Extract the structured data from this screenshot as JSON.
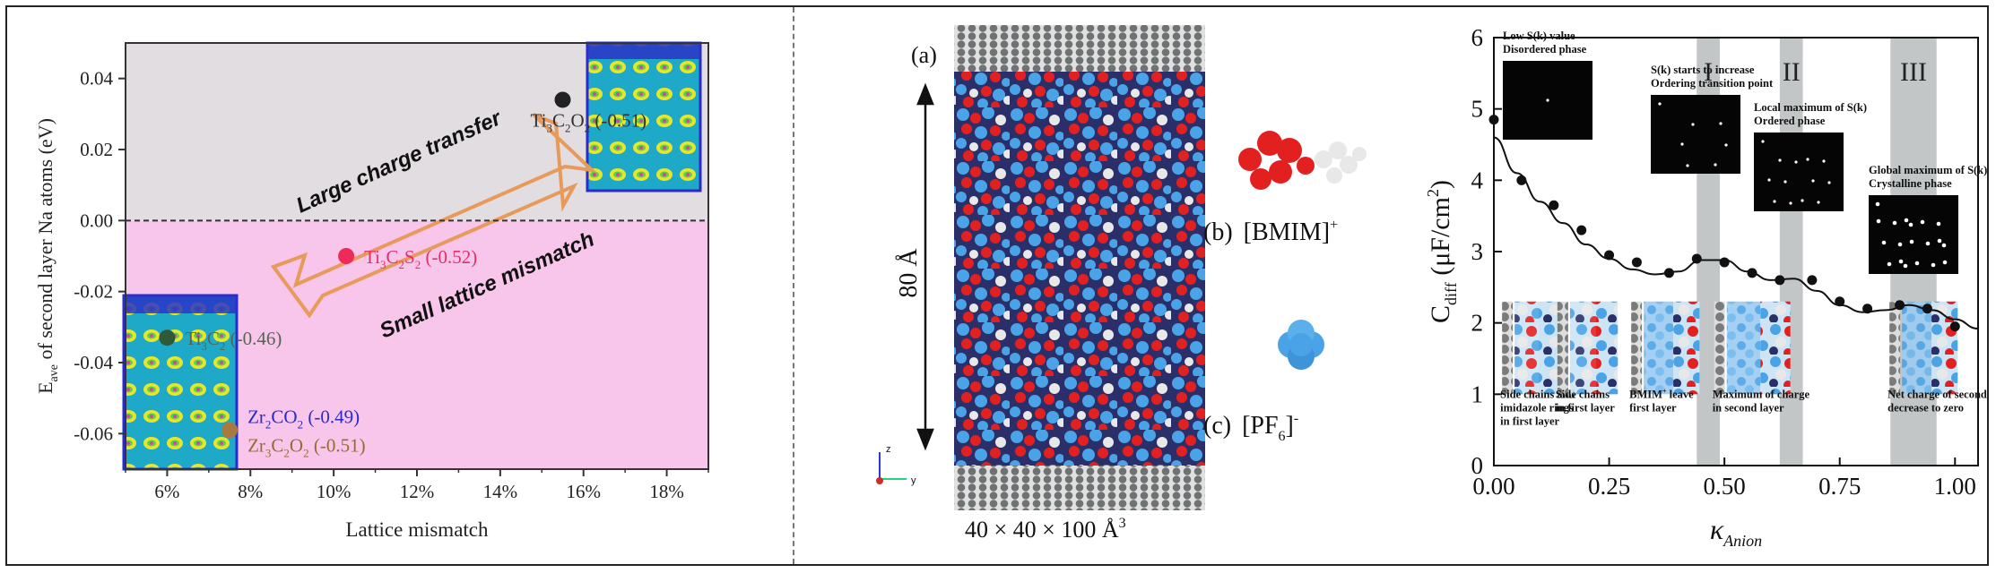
{
  "left_panel": {
    "annotations": {
      "charge": "Large charge transfer",
      "mismatch": "Small lattice mismatch"
    }
  },
  "middle_panel": {
    "label_a": "(a)",
    "label_b": "(b)",
    "label_c": "(c)",
    "height_label": "80 Å",
    "box_label_main": "40 × 40 × 100 Å",
    "box_label_sup": "3",
    "cation_base": "[BMIM]",
    "cation_sup": "+",
    "anion_base": "[PF",
    "anion_sub": "6",
    "anion_close": "]",
    "anion_sup": "-",
    "axis_z": "z",
    "axis_y": "y",
    "colors": {
      "anion": "#4aa3e6",
      "cation_ring": "#e32020",
      "chain": "#e8e8e8",
      "electrode": "#6f7272"
    }
  },
  "right_panel": {
    "regions": [
      "I",
      "II",
      "III"
    ],
    "insets": [
      {
        "line1": "Low S(k) value",
        "line2": "Disordered phase"
      },
      {
        "line1": "S(k) starts to increase",
        "line2": "Ordering transition point"
      },
      {
        "line1": "Local maximum of S(k)",
        "line2": "Ordered phase"
      },
      {
        "line1": "Global maximum of S(k)",
        "line2": "Crystalline phase"
      }
    ],
    "snapshot_captions": [
      [
        "Side chains and",
        "imidazole rings",
        "in first layer"
      ],
      [
        "Side chains",
        "in first layer"
      ],
      [
        "BMIM",
        "+",
        " leave",
        "first layer"
      ],
      [
        "Maximum of charge",
        "in second layer"
      ],
      [
        "Net charge of second layer",
        "decrease to zero"
      ]
    ]
  },
  "chart_data": [
    {
      "type": "scatter",
      "title": "",
      "xlabel": "Lattice mismatch",
      "ylabel_main": "E",
      "ylabel_sub": "ave",
      "ylabel_rest": " of second layer Na atoms (eV)",
      "xlim": [
        5,
        19
      ],
      "ylim": [
        -0.07,
        0.05
      ],
      "x_ticks": [
        6,
        8,
        10,
        12,
        14,
        16,
        18
      ],
      "x_tick_labels": [
        "6%",
        "8%",
        "10%",
        "12%",
        "14%",
        "16%",
        "18%"
      ],
      "y_ticks": [
        0.04,
        0.02,
        0.0,
        -0.02,
        -0.04,
        -0.06
      ],
      "y_tick_labels": [
        "0.04",
        "0.02",
        "0.00",
        "-0.02",
        "-0.04",
        "-0.06"
      ],
      "background_bands": [
        {
          "from": 0.0,
          "to": 0.05,
          "color": "#e2dde0"
        },
        {
          "from": -0.07,
          "to": 0.0,
          "color": "#f7c6ea"
        }
      ],
      "points": [
        {
          "x": 15.5,
          "y": 0.034,
          "color": "#222222",
          "label_parts": [
            [
              "Ti",
              ""
            ],
            [
              "3",
              "sub"
            ],
            [
              "C",
              ""
            ],
            [
              "2",
              "sub"
            ],
            [
              "O",
              ""
            ],
            [
              "2",
              "sub"
            ],
            [
              " (-0.51)",
              ""
            ]
          ],
          "label_color": "#333333"
        },
        {
          "x": 10.3,
          "y": -0.01,
          "color": "#ee2a5a",
          "label_parts": [
            [
              "Ti",
              ""
            ],
            [
              "3",
              "sub"
            ],
            [
              "C",
              ""
            ],
            [
              "2",
              "sub"
            ],
            [
              "S",
              ""
            ],
            [
              "2",
              "sub"
            ],
            [
              " (-0.52)",
              ""
            ]
          ],
          "label_color": "#e0306a"
        },
        {
          "x": 6.0,
          "y": -0.033,
          "color": "#2f5a3a",
          "label_parts": [
            [
              "Ti",
              ""
            ],
            [
              "3",
              "sub"
            ],
            [
              "C",
              ""
            ],
            [
              "2",
              "sub"
            ],
            [
              " (-0.46)",
              ""
            ]
          ],
          "label_color": "#556655"
        },
        {
          "x": 7.5,
          "y": -0.059,
          "color": "#a87a40",
          "label_parts": [
            [
              "Zr",
              ""
            ],
            [
              "3",
              "sub"
            ],
            [
              "C",
              ""
            ],
            [
              "2",
              "sub"
            ],
            [
              "O",
              ""
            ],
            [
              "2",
              "sub"
            ],
            [
              " (-0.51)",
              ""
            ]
          ],
          "label_color": "#9a6a30"
        },
        {
          "x": 7.5,
          "y": -0.059,
          "color": "#a87a40",
          "label_parts": [
            [
              "Zr",
              ""
            ],
            [
              "2",
              "sub"
            ],
            [
              "CO",
              ""
            ],
            [
              "2",
              "sub"
            ],
            [
              " (-0.49)",
              ""
            ]
          ],
          "label_color": "#2a2ac8"
        }
      ]
    },
    {
      "type": "line",
      "title": "",
      "xlabel_main": "κ",
      "xlabel_sub": "Anion",
      "ylabel_main": "C",
      "ylabel_sub": "diff",
      "ylabel_rest_a": " (μF/cm",
      "ylabel_sup": "2",
      "ylabel_rest_b": ")",
      "xlim": [
        0,
        1.05
      ],
      "ylim": [
        0,
        6
      ],
      "x_ticks": [
        0,
        0.25,
        0.5,
        0.75,
        1.0
      ],
      "x_tick_labels": [
        "0.00",
        "0.25",
        "0.50",
        "0.75",
        "1.00"
      ],
      "y_ticks": [
        0,
        1,
        2,
        3,
        4,
        5,
        6
      ],
      "y_tick_labels": [
        "0",
        "1",
        "2",
        "3",
        "4",
        "5",
        "6"
      ],
      "shaded_regions": [
        {
          "label": "I",
          "from": 0.44,
          "to": 0.49
        },
        {
          "label": "II",
          "from": 0.62,
          "to": 0.67
        },
        {
          "label": "III",
          "from": 0.86,
          "to": 0.96
        }
      ],
      "points": {
        "x": [
          0.0,
          0.06,
          0.13,
          0.19,
          0.25,
          0.31,
          0.38,
          0.44,
          0.5,
          0.56,
          0.62,
          0.69,
          0.75,
          0.81,
          0.88,
          0.94,
          1.0
        ],
        "y": [
          4.85,
          4.0,
          3.65,
          3.3,
          2.95,
          2.85,
          2.7,
          2.9,
          2.85,
          2.7,
          2.6,
          2.6,
          2.3,
          2.2,
          2.25,
          2.2,
          1.95
        ]
      },
      "fit_curve": {
        "x": [
          0.0,
          0.05,
          0.1,
          0.15,
          0.2,
          0.25,
          0.3,
          0.35,
          0.4,
          0.45,
          0.5,
          0.55,
          0.6,
          0.65,
          0.7,
          0.75,
          0.8,
          0.85,
          0.9,
          0.95,
          1.0,
          1.05
        ],
        "y": [
          4.6,
          4.1,
          3.7,
          3.4,
          3.1,
          2.9,
          2.75,
          2.68,
          2.72,
          2.88,
          2.88,
          2.72,
          2.6,
          2.62,
          2.45,
          2.25,
          2.15,
          2.18,
          2.25,
          2.18,
          2.05,
          1.92
        ]
      }
    }
  ]
}
